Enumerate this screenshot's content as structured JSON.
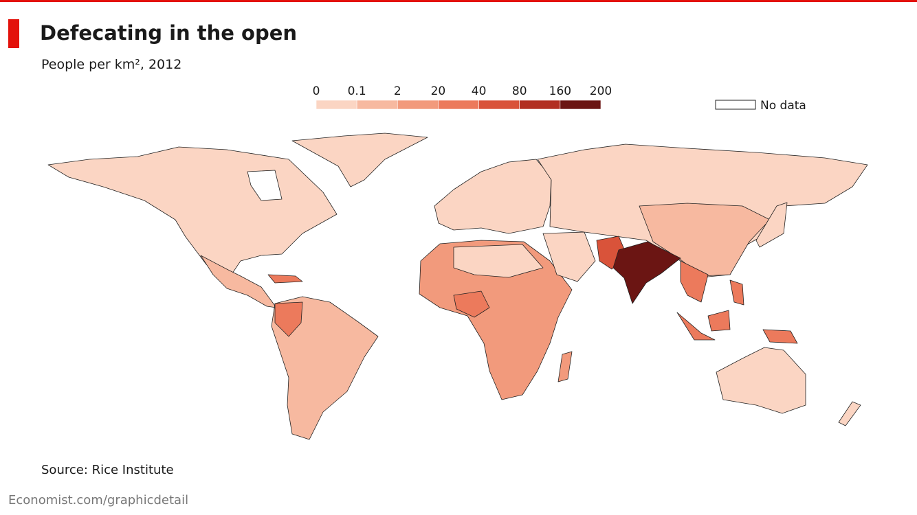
{
  "header": {
    "title": "Defecating in the open",
    "subtitle": "People per km², 2012"
  },
  "legend": {
    "ticks": [
      0,
      0.1,
      2,
      20,
      40,
      80,
      160,
      200
    ],
    "colors": [
      "#fbd5c3",
      "#f7b9a0",
      "#f29a7c",
      "#ec7a5c",
      "#d9533a",
      "#b22f22",
      "#6b1513"
    ],
    "no_data": "No data"
  },
  "footer": {
    "source": "Source: Rice Institute",
    "site": "Economist.com/graphicdetail"
  }
}
